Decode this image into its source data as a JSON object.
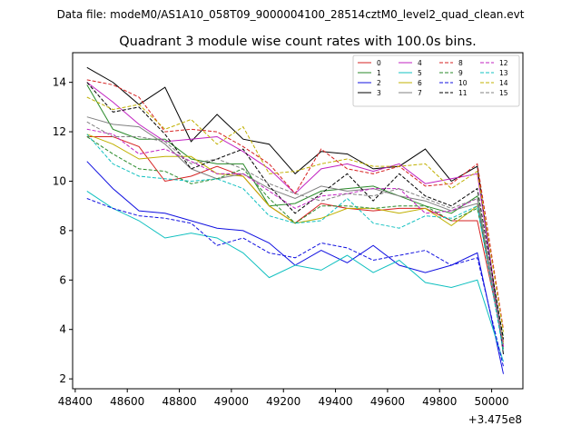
{
  "suptitle": "Data file: modeM0/AS1A10_058T09_9000004100_28514cztM0_level2_quad_clean.evt",
  "title": "Quadrant 3 module wise count rates with 100.0s bins.",
  "x_offset_label": "+3.475e8",
  "chart_data": {
    "type": "line",
    "title": "Quadrant 3 module wise count rates with 100.0s bins.",
    "xlabel": "",
    "ylabel": "",
    "x_offset": 347500000,
    "x": [
      48445,
      48545,
      48645,
      48745,
      48845,
      48945,
      49045,
      49145,
      49245,
      49345,
      49445,
      49545,
      49645,
      49745,
      49845,
      49945,
      50045
    ],
    "xlim": [
      48390,
      50120
    ],
    "ylim": [
      1.6,
      15.2
    ],
    "xticks": [
      48400,
      48600,
      48800,
      49000,
      49200,
      49400,
      49600,
      49800,
      50000
    ],
    "yticks": [
      2,
      4,
      6,
      8,
      10,
      12,
      14
    ],
    "grid": false,
    "legend_position": "top-right",
    "legend_columns": 4,
    "series": [
      {
        "name": "0",
        "color": "#d62020",
        "dash": "solid",
        "values": [
          11.8,
          11.8,
          11.4,
          10.0,
          10.2,
          10.6,
          10.2,
          9.0,
          8.3,
          9.1,
          8.9,
          8.8,
          8.9,
          8.9,
          8.4,
          8.4,
          3.5
        ]
      },
      {
        "name": "1",
        "color": "#2a8a2a",
        "dash": "solid",
        "values": [
          13.9,
          12.1,
          11.7,
          11.7,
          10.9,
          10.7,
          10.7,
          9.0,
          9.1,
          9.6,
          9.7,
          9.8,
          9.4,
          9.0,
          8.7,
          9.4,
          3.2
        ]
      },
      {
        "name": "2",
        "color": "#1010e0",
        "dash": "solid",
        "values": [
          10.8,
          9.7,
          8.8,
          8.7,
          8.4,
          8.1,
          8.0,
          7.5,
          6.6,
          7.2,
          6.7,
          7.4,
          6.6,
          6.3,
          6.6,
          7.1,
          2.2
        ]
      },
      {
        "name": "3",
        "color": "#000000",
        "dash": "solid",
        "values": [
          14.6,
          14.0,
          13.1,
          13.8,
          11.6,
          12.7,
          11.7,
          11.5,
          10.3,
          11.2,
          11.1,
          10.5,
          10.6,
          11.3,
          10.0,
          10.6,
          3.0
        ]
      },
      {
        "name": "4",
        "color": "#c020c0",
        "dash": "solid",
        "values": [
          14.0,
          13.2,
          12.3,
          11.6,
          11.7,
          11.8,
          11.2,
          10.5,
          9.5,
          10.5,
          10.7,
          10.4,
          10.7,
          9.9,
          10.1,
          10.3,
          3.3
        ]
      },
      {
        "name": "5",
        "color": "#10c0c0",
        "dash": "solid",
        "values": [
          9.6,
          8.9,
          8.4,
          7.7,
          7.9,
          7.7,
          7.1,
          6.1,
          6.6,
          6.4,
          7.0,
          6.3,
          6.8,
          5.9,
          5.7,
          6.0,
          2.7
        ]
      },
      {
        "name": "6",
        "color": "#c0b000",
        "dash": "solid",
        "values": [
          11.9,
          11.5,
          10.9,
          11.0,
          11.0,
          10.3,
          10.2,
          9.0,
          8.3,
          8.5,
          8.9,
          8.9,
          8.7,
          8.9,
          8.2,
          9.0,
          3.4
        ]
      },
      {
        "name": "7",
        "color": "#808080",
        "dash": "solid",
        "values": [
          12.6,
          12.3,
          12.2,
          11.5,
          10.5,
          10.1,
          10.3,
          9.7,
          9.3,
          9.8,
          9.6,
          9.7,
          9.4,
          9.2,
          8.8,
          9.1,
          3.3
        ]
      },
      {
        "name": "8",
        "color": "#d62020",
        "dash": "dashed",
        "values": [
          14.1,
          13.9,
          13.4,
          12.0,
          12.1,
          12.0,
          11.4,
          10.7,
          9.5,
          11.3,
          10.5,
          10.3,
          10.6,
          9.8,
          9.9,
          10.7,
          4.0
        ]
      },
      {
        "name": "9",
        "color": "#2a8a2a",
        "dash": "dashed",
        "values": [
          11.8,
          11.1,
          10.5,
          10.4,
          9.9,
          10.1,
          10.5,
          9.3,
          8.3,
          9.0,
          9.0,
          8.9,
          9.0,
          9.0,
          8.4,
          8.9,
          3.7
        ]
      },
      {
        "name": "10",
        "color": "#1010e0",
        "dash": "dashed",
        "values": [
          9.3,
          8.9,
          8.6,
          8.5,
          8.3,
          7.4,
          7.7,
          7.1,
          6.9,
          7.5,
          7.3,
          6.8,
          7.0,
          7.2,
          6.6,
          6.9,
          2.5
        ]
      },
      {
        "name": "11",
        "color": "#000000",
        "dash": "dashed",
        "values": [
          14.0,
          12.8,
          13.0,
          11.9,
          10.5,
          10.9,
          11.3,
          9.8,
          8.7,
          9.5,
          10.3,
          9.2,
          10.3,
          9.4,
          9.0,
          9.7,
          3.6
        ]
      },
      {
        "name": "12",
        "color": "#c020c0",
        "dash": "dashed",
        "values": [
          12.1,
          11.9,
          11.1,
          11.3,
          10.8,
          10.3,
          10.3,
          9.6,
          8.9,
          9.4,
          9.5,
          9.7,
          9.7,
          8.7,
          8.8,
          9.3,
          3.3
        ]
      },
      {
        "name": "13",
        "color": "#10c0c0",
        "dash": "dashed",
        "values": [
          11.9,
          10.7,
          10.2,
          10.1,
          10.0,
          10.1,
          9.7,
          8.6,
          8.3,
          8.4,
          9.3,
          8.3,
          8.1,
          8.6,
          8.5,
          9.0,
          3.1
        ]
      },
      {
        "name": "14",
        "color": "#c0b000",
        "dash": "dashed",
        "values": [
          13.4,
          12.9,
          13.1,
          12.1,
          12.5,
          11.5,
          12.2,
          10.3,
          10.4,
          10.7,
          10.9,
          10.6,
          10.6,
          10.7,
          9.7,
          10.4,
          3.9
        ]
      },
      {
        "name": "15",
        "color": "#808080",
        "dash": "dashed",
        "values": [
          12.4,
          11.8,
          11.8,
          11.6,
          10.7,
          10.9,
          10.5,
          9.9,
          9.5,
          9.2,
          9.5,
          9.4,
          9.7,
          9.3,
          8.9,
          9.3,
          3.4
        ]
      }
    ]
  }
}
